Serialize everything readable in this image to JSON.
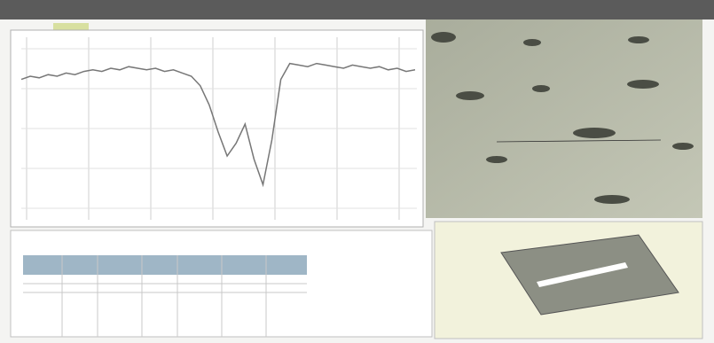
{
  "profile": {
    "values": [
      78,
      80,
      79,
      81,
      80,
      82,
      81,
      83,
      84,
      83,
      85,
      84,
      86,
      85,
      84,
      85,
      83,
      84,
      82,
      80,
      74,
      62,
      45,
      30,
      38,
      50,
      28,
      12,
      40,
      78,
      88,
      87,
      86,
      88,
      87,
      86,
      85,
      87,
      86,
      85,
      86,
      84,
      85,
      83,
      84
    ]
  }
}
